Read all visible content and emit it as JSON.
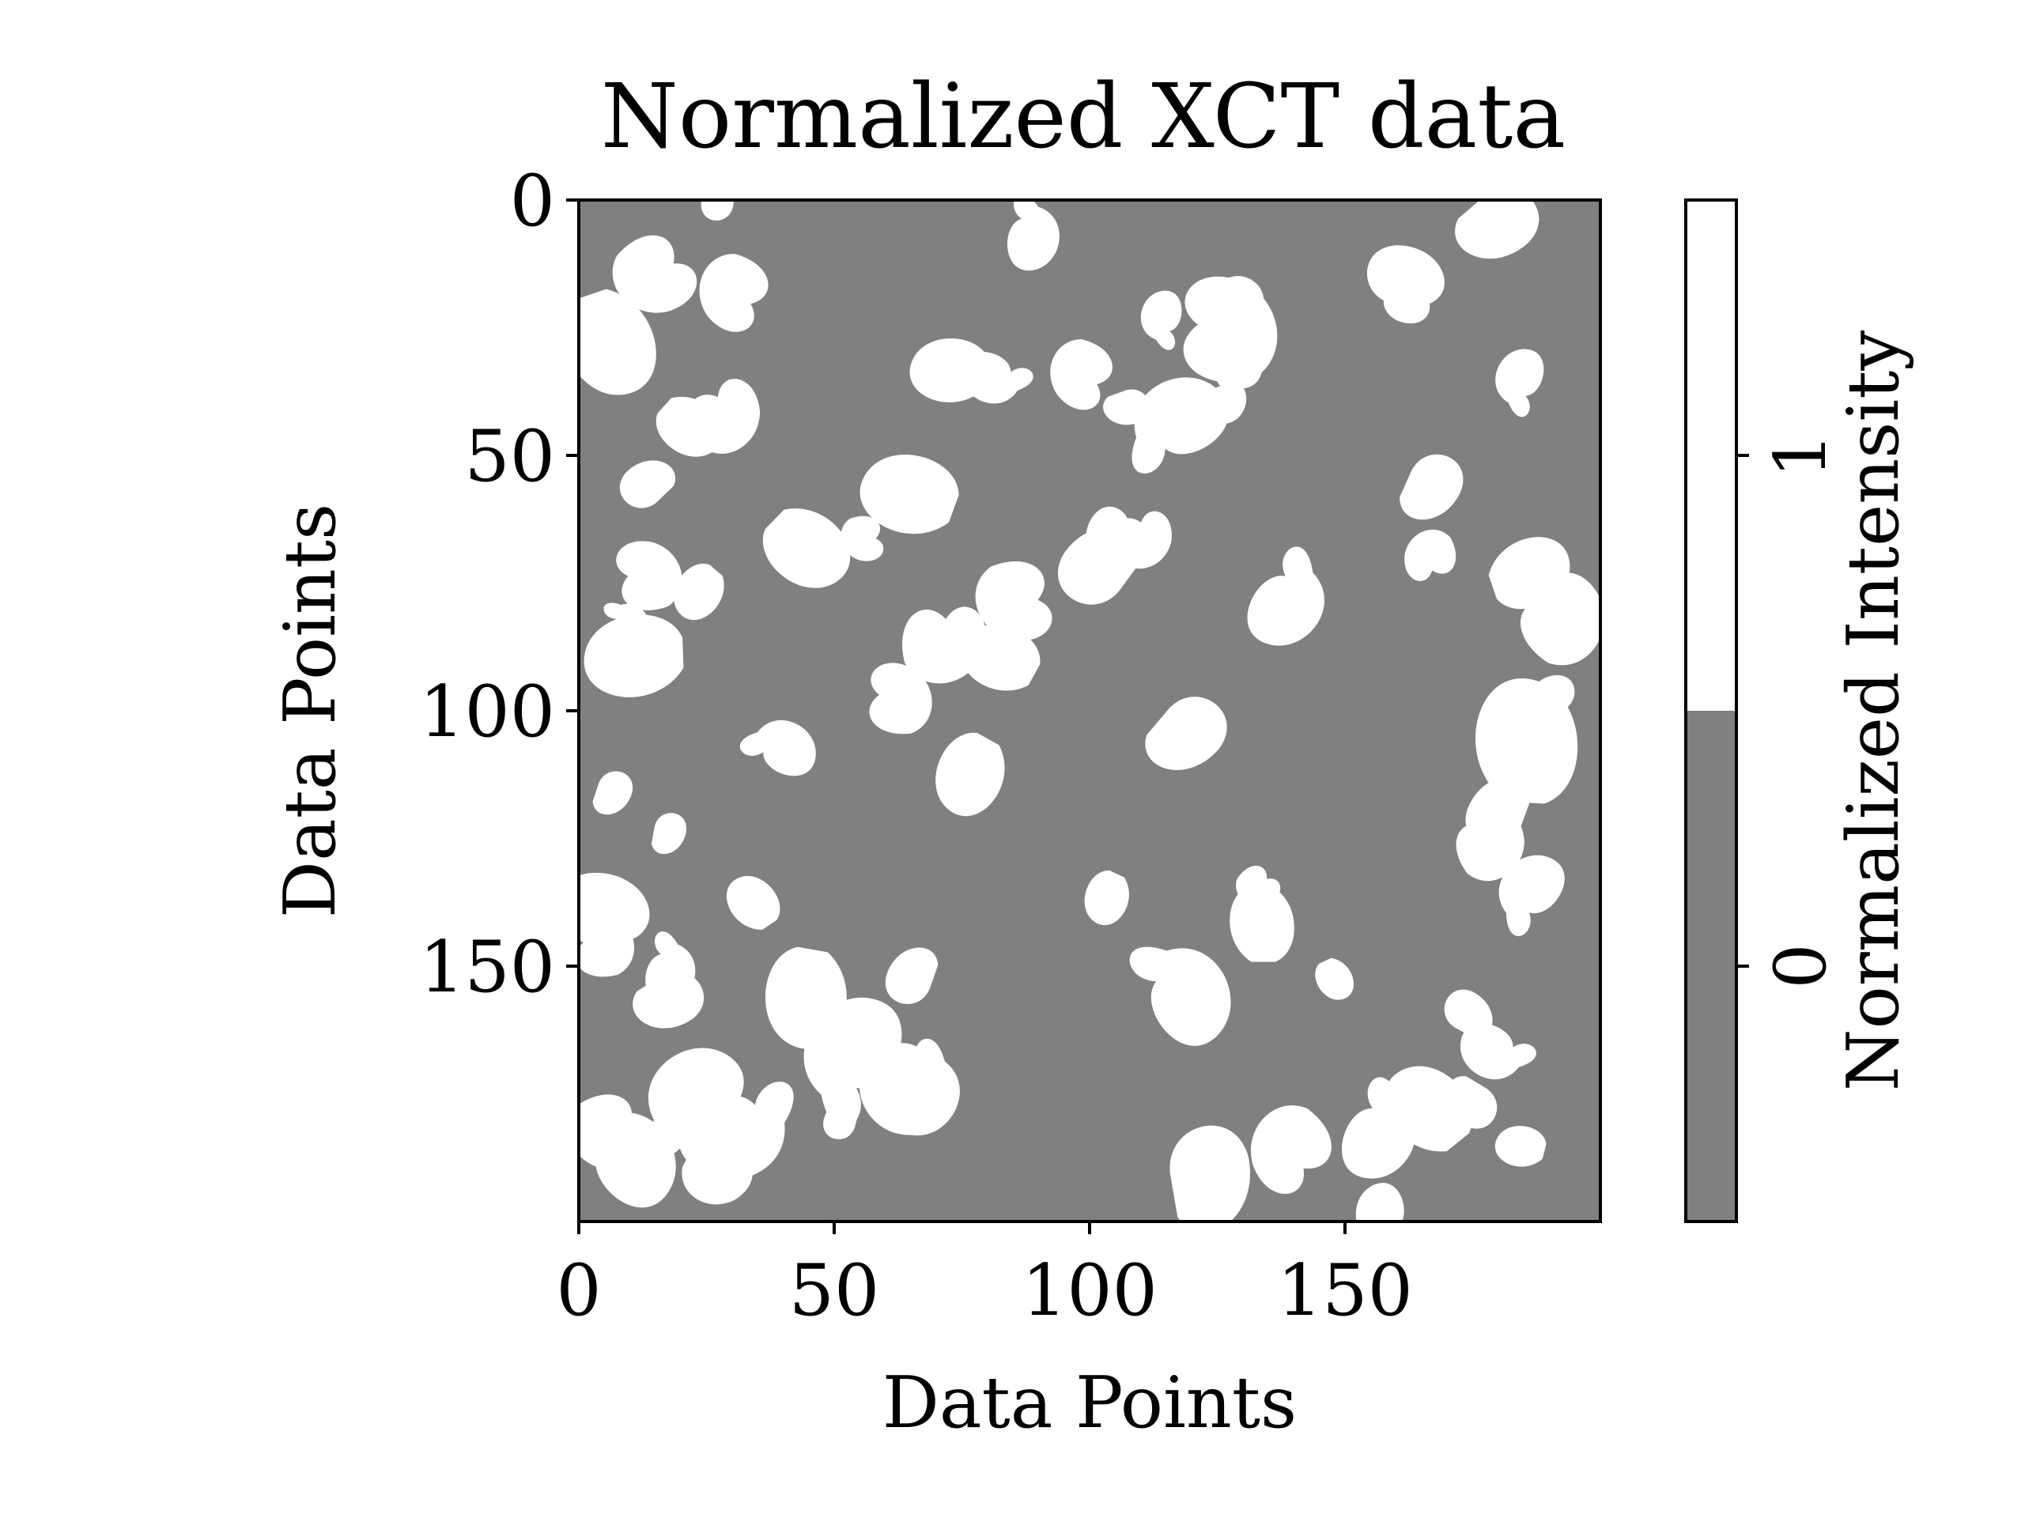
{
  "chart_data": {
    "type": "heatmap",
    "title": "Normalized XCT data",
    "xlabel": "Data Points",
    "ylabel": "Data Points",
    "xlim": [
      0,
      200
    ],
    "ylim": [
      200,
      0
    ],
    "x_ticks": [
      0,
      50,
      100,
      150
    ],
    "y_ticks": [
      0,
      50,
      100,
      150
    ],
    "grid": false,
    "colormap": {
      "0": "#808080",
      "1": "#ffffff"
    },
    "matrix_shape": [
      200,
      200
    ],
    "matrix_values": "binary 0/1 labyrinth (spinodal-like) pattern",
    "colorbar": {
      "label": "Normalized Intensity",
      "ticks": [
        0,
        1
      ],
      "tick_labels": [
        "0",
        "1"
      ],
      "colors": [
        "#808080",
        "#ffffff"
      ]
    }
  }
}
